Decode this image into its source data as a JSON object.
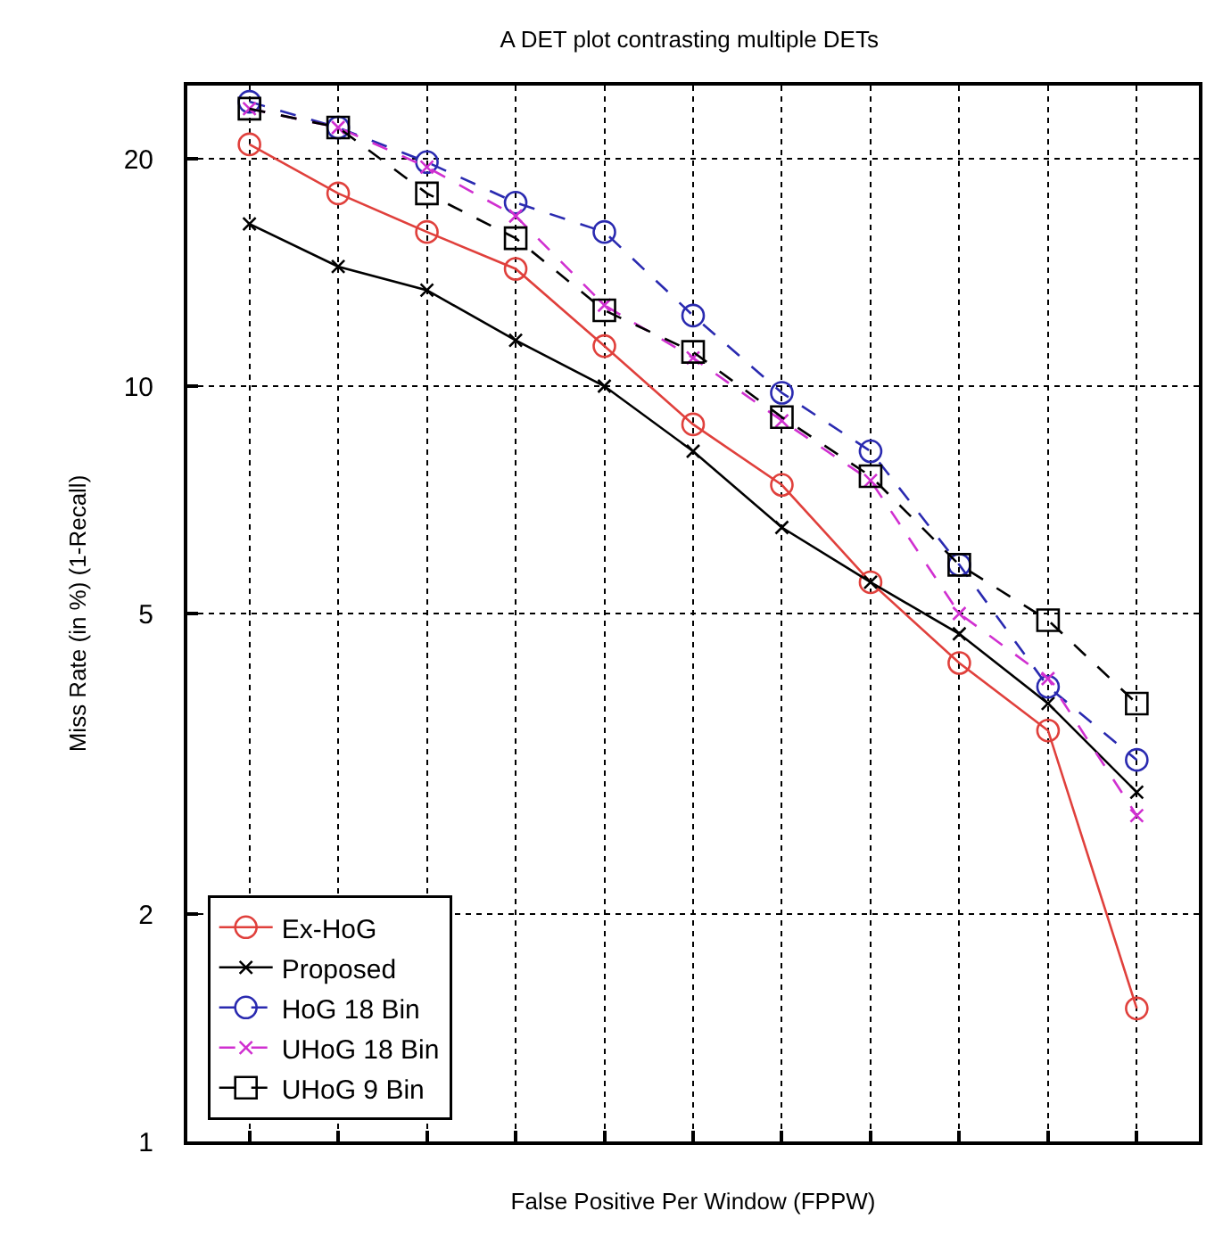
{
  "chart_data": {
    "type": "line",
    "title": "A DET plot contrasting multiple DETs",
    "xlabel": "False Positive Per Window (FPPW)",
    "ylabel": "Miss Rate (in %) (1-Recall)",
    "categories": [
      null,
      null,
      null,
      null,
      null,
      null,
      null,
      null,
      null,
      null,
      null
    ],
    "series": [
      {
        "name": "Ex-HoG",
        "color": "#e0403c",
        "marker": "circle",
        "line_style": "solid",
        "values": [
          20.9,
          18.0,
          16.0,
          14.3,
          11.3,
          8.9,
          7.4,
          5.5,
          4.3,
          3.5,
          1.5
        ]
      },
      {
        "name": "Proposed",
        "color": "#000000",
        "marker": "cross",
        "line_style": "solid",
        "values": [
          16.4,
          14.4,
          13.4,
          11.5,
          10.0,
          8.2,
          6.5,
          5.5,
          4.7,
          3.8,
          2.9
        ]
      },
      {
        "name": "HoG 18 Bin",
        "color": "#2a2ab0",
        "marker": "circle",
        "line_style": "dashed",
        "values": [
          23.8,
          22.0,
          19.8,
          17.5,
          16.0,
          12.4,
          9.8,
          8.2,
          5.8,
          4.0,
          3.2
        ]
      },
      {
        "name": "UHoG 18 Bin",
        "color": "#d030d0",
        "marker": "cross",
        "line_style": "dashed",
        "values": [
          23.3,
          22.0,
          19.5,
          16.8,
          12.8,
          10.9,
          9.0,
          7.5,
          5.0,
          4.1,
          2.7
        ]
      },
      {
        "name": "UHoG 9 Bin",
        "color": "#000000",
        "marker": "square",
        "line_style": "dashed",
        "values": [
          23.3,
          22.0,
          18.0,
          15.7,
          12.6,
          11.1,
          9.1,
          7.6,
          5.8,
          4.9,
          3.8
        ]
      }
    ],
    "log": "y",
    "ylim": [
      1,
      25
    ],
    "yticks": [
      1,
      2,
      5,
      10,
      20
    ],
    "grid": true,
    "legend": "bottom left",
    "tick_labels": "y"
  }
}
